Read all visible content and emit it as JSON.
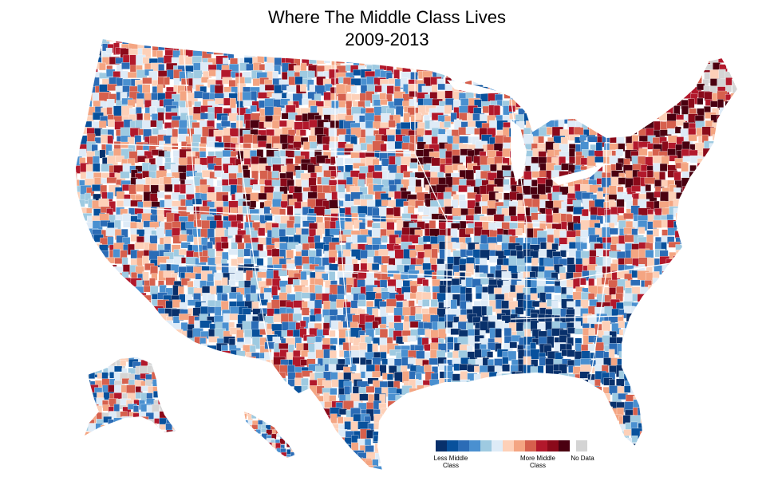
{
  "title": "Where The Middle Class Lives",
  "subtitle": "2009-2013",
  "legend": {
    "scale_colors": [
      "#08306b",
      "#08519c",
      "#2b6cb6",
      "#4a90d0",
      "#9ecae1",
      "#deebf7",
      "#fdd0b8",
      "#f4a582",
      "#d6604d",
      "#b2182b",
      "#8b0a1a",
      "#4a0010"
    ],
    "less_label": "Less Middle Class",
    "more_label": "More Middle Class",
    "nodata_label": "No Data",
    "nodata_color": "#d4d4d4"
  },
  "map": {
    "regions": [
      "contiguous-us",
      "alaska",
      "hawaii"
    ],
    "color_scale_low": "#08306b",
    "color_scale_high": "#4a0010",
    "border_color": "#ffffff"
  }
}
